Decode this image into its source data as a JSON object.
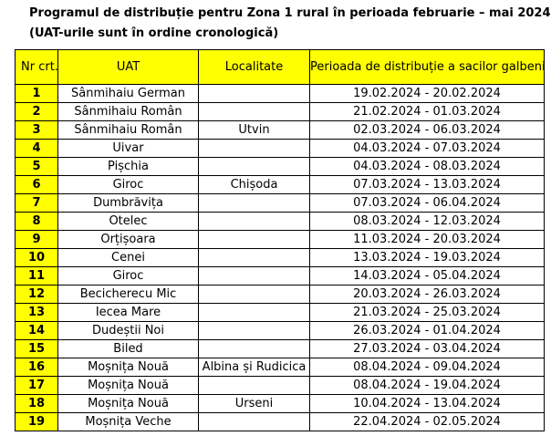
{
  "header": {
    "title": "Programul de distribuție pentru Zona 1 rural în perioada februarie – mai 2024",
    "subtitle": "(UAT-urile sunt în ordine cronologică)"
  },
  "table": {
    "columns": [
      "Nr crt.",
      "UAT",
      "Localitate",
      "Perioada de distribuție a sacilor galbeni"
    ],
    "rows": [
      {
        "nr": "1",
        "uat": "Sânmihaiu German",
        "loc": "",
        "period": "19.02.2024 - 20.02.2024"
      },
      {
        "nr": "2",
        "uat": "Sânmihaiu Român",
        "loc": "",
        "period": "21.02.2024 - 01.03.2024"
      },
      {
        "nr": "3",
        "uat": "Sânmihaiu Român",
        "loc": "Utvin",
        "period": "02.03.2024 - 06.03.2024"
      },
      {
        "nr": "4",
        "uat": "Uivar",
        "loc": "",
        "period": "04.03.2024 - 07.03.2024"
      },
      {
        "nr": "5",
        "uat": "Pișchia",
        "loc": "",
        "period": "04.03.2024 - 08.03.2024"
      },
      {
        "nr": "6",
        "uat": "Giroc",
        "loc": "Chișoda",
        "period": "07.03.2024 - 13.03.2024"
      },
      {
        "nr": "7",
        "uat": "Dumbrăvița",
        "loc": "",
        "period": "07.03.2024 - 06.04.2024"
      },
      {
        "nr": "8",
        "uat": "Otelec",
        "loc": "",
        "period": "08.03.2024 - 12.03.2024"
      },
      {
        "nr": "9",
        "uat": "Orțișoara",
        "loc": "",
        "period": "11.03.2024 - 20.03.2024"
      },
      {
        "nr": "10",
        "uat": "Cenei",
        "loc": "",
        "period": "13.03.2024 - 19.03.2024"
      },
      {
        "nr": "11",
        "uat": "Giroc",
        "loc": "",
        "period": "14.03.2024 - 05.04.2024"
      },
      {
        "nr": "12",
        "uat": "Becicherecu Mic",
        "loc": "",
        "period": "20.03.2024 - 26.03.2024"
      },
      {
        "nr": "13",
        "uat": "Iecea Mare",
        "loc": "",
        "period": "21.03.2024 - 25.03.2024"
      },
      {
        "nr": "14",
        "uat": "Dudeștii Noi",
        "loc": "",
        "period": "26.03.2024 - 01.04.2024"
      },
      {
        "nr": "15",
        "uat": "Biled",
        "loc": "",
        "period": "27.03.2024 - 03.04.2024"
      },
      {
        "nr": "16",
        "uat": "Moșnița Nouă",
        "loc": "Albina și Rudicica",
        "period": "08.04.2024 - 09.04.2024"
      },
      {
        "nr": "17",
        "uat": "Moșnița Nouă",
        "loc": "",
        "period": "08.04.2024 - 19.04.2024"
      },
      {
        "nr": "18",
        "uat": "Moșnița Nouă",
        "loc": "Urseni",
        "period": "10.04.2024 - 13.04.2024"
      },
      {
        "nr": "19",
        "uat": "Moșnița Veche",
        "loc": "",
        "period": "22.04.2024 - 02.05.2024"
      }
    ]
  }
}
